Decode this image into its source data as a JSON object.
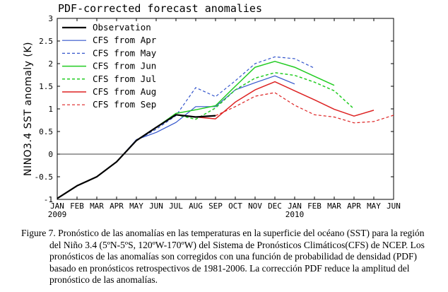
{
  "chart_data": {
    "type": "line",
    "title": "PDF-corrected forecast anomalies",
    "ylabel": "NINO3.4 SST anomaly (K)",
    "xlabel": "",
    "ylim": [
      -1,
      3
    ],
    "yticks": [
      -1,
      -0.5,
      0,
      0.5,
      1,
      1.5,
      2,
      2.5,
      3
    ],
    "ytick_labels": [
      "-1",
      "-0.5",
      "0",
      "0.5",
      "1",
      "1.5",
      "2",
      "2.5",
      "3"
    ],
    "x_labels": [
      "JAN",
      "FEB",
      "MAR",
      "APR",
      "MAY",
      "JUN",
      "JUL",
      "AUG",
      "SEP",
      "OCT",
      "NOV",
      "DEC",
      "JAN",
      "FEB",
      "MAR",
      "APR",
      "MAY",
      "JUN"
    ],
    "year_labels": [
      {
        "index": 0,
        "text": "2009"
      },
      {
        "index": 12,
        "text": "2010"
      }
    ],
    "zero_line": true,
    "legend_position": "top-left",
    "series": [
      {
        "name": "Observation",
        "color": "#000000",
        "dash": "solid",
        "width": 2.2,
        "start": 0,
        "values": [
          -0.98,
          -0.7,
          -0.5,
          -0.17,
          0.3,
          0.59,
          0.87,
          0.82,
          0.85
        ]
      },
      {
        "name": "CFS from Apr",
        "color": "#3355cc",
        "dash": "solid",
        "width": 1.2,
        "start": 3,
        "values": [
          -0.17,
          0.32,
          0.48,
          0.7,
          1.05,
          1.05,
          1.42,
          1.58,
          1.73,
          1.55
        ]
      },
      {
        "name": "CFS from May",
        "color": "#3355cc",
        "dash": "dashed",
        "width": 1.2,
        "start": 4,
        "values": [
          0.3,
          0.55,
          0.85,
          1.47,
          1.27,
          1.62,
          2.0,
          2.15,
          2.11,
          1.9
        ]
      },
      {
        "name": "CFS from Jun",
        "color": "#22cc22",
        "dash": "solid",
        "width": 1.5,
        "start": 5,
        "values": [
          0.59,
          0.9,
          0.98,
          1.07,
          1.5,
          1.92,
          2.05,
          1.92,
          1.72,
          1.52
        ]
      },
      {
        "name": "CFS from Jul",
        "color": "#22cc22",
        "dash": "dashed",
        "width": 1.5,
        "start": 6,
        "values": [
          0.87,
          0.77,
          1.02,
          1.42,
          1.68,
          1.8,
          1.74,
          1.59,
          1.4,
          1.0
        ]
      },
      {
        "name": "CFS from Aug",
        "color": "#dd2222",
        "dash": "solid",
        "width": 1.5,
        "start": 7,
        "values": [
          0.82,
          0.78,
          1.15,
          1.42,
          1.6,
          1.4,
          1.2,
          0.99,
          0.84,
          0.97
        ]
      },
      {
        "name": "CFS from Sep",
        "color": "#dd2222",
        "dash": "dashed",
        "width": 1.2,
        "start": 8,
        "values": [
          0.85,
          1.05,
          1.28,
          1.36,
          1.08,
          0.87,
          0.82,
          0.69,
          0.72,
          0.86
        ]
      }
    ]
  },
  "caption": {
    "first_line": "Figure 7. Pronóstico de las anomalías en las temperaturas en la superficie del océano (SST) para la región",
    "rest": "del Niño 3.4 (5ºN-5ºS, 120ºW-170ºW) del Sistema de Pronósticos Climáticos(CFS) de NCEP. Los pronósticos de las anomalías son corregidos con una función de probabilidad de densidad (PDF) basado en pronósticos retrospectivos de 1981-2006. La corrección PDF reduce la amplitud del pronóstico de las anomalías."
  }
}
